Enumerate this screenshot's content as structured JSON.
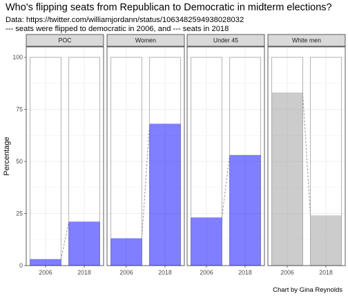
{
  "chart": {
    "title": "Who's flipping seats from Republican to Democratic in midterm elections?",
    "subtitle_lines": [
      "Data: https://twitter.com/williamjordann/status/1063482594938028032",
      " --- seats were flipped to democratic in 2006, and --- seats in 2018"
    ],
    "caption": "Chart by Gina Reynolds"
  },
  "chart_data": {
    "type": "bar",
    "facets": [
      "POC",
      "Women",
      "Under 45",
      "White men"
    ],
    "categories": [
      "2006",
      "2018"
    ],
    "ylabel": "Percentage",
    "xlabel": "",
    "ylim": [
      0,
      105
    ],
    "yticks": [
      0,
      25,
      50,
      75,
      100
    ],
    "reference_value": 100,
    "grid": true,
    "colors": {
      "democratic": "#0000ff",
      "other": "#999999"
    },
    "series": [
      {
        "facet": "POC",
        "values": [
          3,
          21
        ],
        "color_group": "democratic"
      },
      {
        "facet": "Women",
        "values": [
          13,
          68
        ],
        "color_group": "democratic"
      },
      {
        "facet": "Under 45",
        "values": [
          23,
          53
        ],
        "color_group": "democratic"
      },
      {
        "facet": "White men",
        "values": [
          83,
          24
        ],
        "color_group": "other"
      }
    ]
  }
}
